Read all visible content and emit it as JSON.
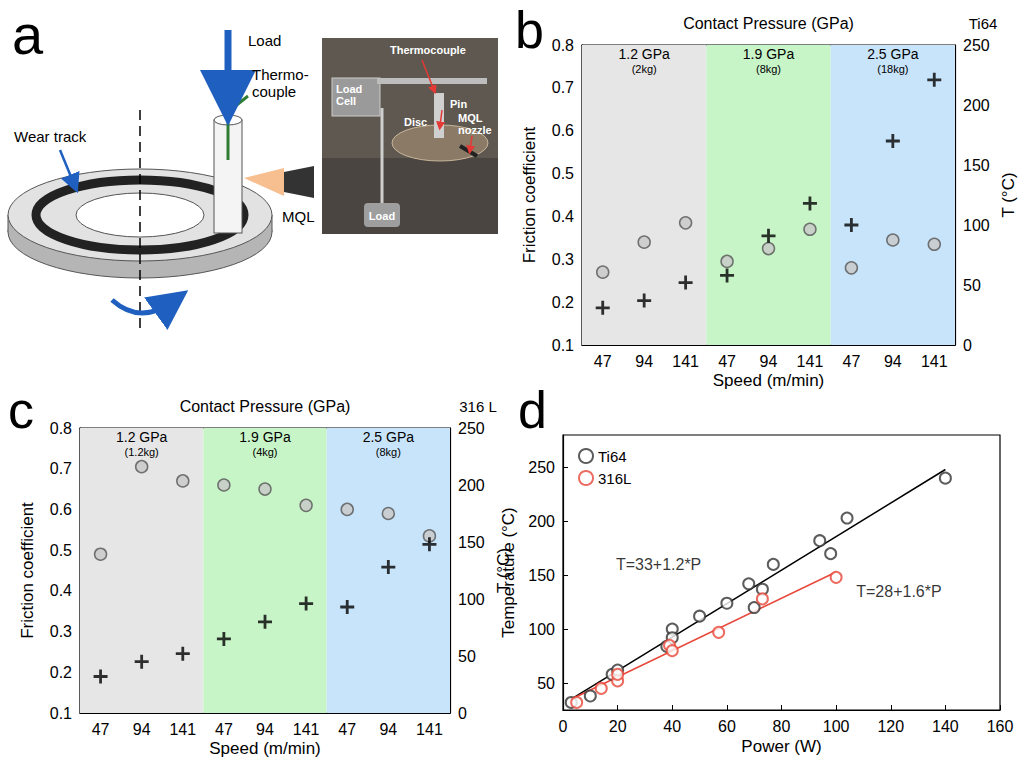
{
  "diagram": {
    "panel_label": "a",
    "schematic_labels": {
      "wear_track": "Wear track",
      "load": "Load",
      "thermocouple": "Thermo-couple",
      "mql": "MQL"
    },
    "photo_labels": {
      "thermocouple": "Thermocouple",
      "load_cell": "Load Cell",
      "pin": "Pin",
      "disc": "Disc",
      "mql_nozzle": "MQL nozzle",
      "load": "Load"
    }
  },
  "chart_data": [
    {
      "panel_label": "b",
      "type": "scatter",
      "title": "Contact Pressure (GPa)",
      "material_label": "Ti64",
      "x_label": "Speed (m/min)",
      "y_label": "Friction coefficient",
      "y2_label": "T (°C)",
      "groups": [
        {
          "name": "1.2 GPa",
          "load": "(2kg)",
          "color": "#e6e6e6",
          "categories": [
            47,
            94,
            141
          ]
        },
        {
          "name": "1.9 GPa",
          "load": "(8kg)",
          "color": "#c8f5c8",
          "categories": [
            47,
            94,
            141
          ]
        },
        {
          "name": "2.5 GPa",
          "load": "(18kg)",
          "color": "#c8e4fa",
          "categories": [
            47,
            94,
            141
          ]
        }
      ],
      "categories": [
        47,
        94,
        141,
        47,
        94,
        141,
        47,
        94,
        141
      ],
      "ylim": [
        0.1,
        0.8
      ],
      "yticks": [
        0.1,
        0.2,
        0.3,
        0.4,
        0.5,
        0.6,
        0.7,
        0.8
      ],
      "y2lim": [
        0,
        250
      ],
      "y2ticks": [
        0,
        50,
        100,
        150,
        200,
        250
      ],
      "series": [
        {
          "marker": "circle",
          "color": "#555555",
          "values": [
            0.27,
            0.34,
            0.385,
            0.295,
            0.325,
            0.37,
            0.28,
            0.345,
            0.335
          ]
        },
        {
          "marker": "cross",
          "color": "#000000",
          "axis": "y2",
          "values": [
            31,
            37,
            52,
            58,
            91,
            118,
            100,
            170,
            221
          ]
        }
      ]
    },
    {
      "panel_label": "c",
      "type": "scatter",
      "title": "Contact Pressure (GPa)",
      "material_label": "316 L",
      "x_label": "Speed (m/min)",
      "y_label": "Friction coefficient",
      "y2_label": "T (°C)",
      "groups": [
        {
          "name": "1.2 GPa",
          "load": "(1.2kg)",
          "color": "#e6e6e6",
          "categories": [
            47,
            94,
            141
          ]
        },
        {
          "name": "1.9 GPa",
          "load": "(4kg)",
          "color": "#c8f5c8",
          "categories": [
            47,
            94,
            141
          ]
        },
        {
          "name": "2.5 GPa",
          "load": "(8kg)",
          "color": "#c8e4fa",
          "categories": [
            47,
            94,
            141
          ]
        }
      ],
      "categories": [
        47,
        94,
        141,
        47,
        94,
        141,
        47,
        94,
        141
      ],
      "ylim": [
        0.1,
        0.8
      ],
      "yticks": [
        0.1,
        0.2,
        0.3,
        0.4,
        0.5,
        0.6,
        0.7,
        0.8
      ],
      "y2lim": [
        0,
        250
      ],
      "y2ticks": [
        0,
        50,
        100,
        150,
        200,
        250
      ],
      "series": [
        {
          "marker": "circle",
          "color": "#555555",
          "values": [
            0.49,
            0.705,
            0.67,
            0.66,
            0.65,
            0.61,
            0.6,
            0.59,
            0.535
          ]
        },
        {
          "marker": "cross",
          "color": "#000000",
          "axis": "y2",
          "values": [
            32,
            45,
            52,
            65,
            80,
            96,
            93,
            128,
            148
          ]
        }
      ]
    },
    {
      "panel_label": "d",
      "type": "scatter",
      "x_label": "Power (W)",
      "y_label": "Temperature (°C)",
      "xlim": [
        0,
        160
      ],
      "xticks": [
        0,
        20,
        40,
        60,
        80,
        100,
        120,
        140,
        160
      ],
      "ylim": [
        25,
        280
      ],
      "yticks": [
        50,
        100,
        150,
        200,
        250
      ],
      "legend": "top-left",
      "series": [
        {
          "name": "Ti64",
          "type": "scatter",
          "marker": "open_circle",
          "color": "#333333",
          "x": [
            3,
            10,
            18,
            20,
            38,
            40,
            40,
            50,
            60,
            68,
            70,
            73,
            77,
            94,
            98,
            104,
            140
          ],
          "values": [
            32,
            38,
            58,
            62,
            84,
            100,
            92,
            112,
            124,
            142,
            120,
            137,
            160,
            182,
            170,
            203,
            240
          ]
        },
        {
          "name": "316L",
          "type": "scatter",
          "marker": "open_circle",
          "color": "#e8473a",
          "x": [
            5,
            14,
            20,
            20,
            39,
            40,
            57,
            73,
            100
          ],
          "values": [
            32,
            45,
            52,
            58,
            85,
            80,
            97,
            128,
            148
          ]
        },
        {
          "type": "line",
          "color": "#000000",
          "x": [
            3,
            140
          ],
          "values": [
            35,
            248
          ]
        },
        {
          "type": "line",
          "color": "#e8473a",
          "x": [
            3,
            100
          ],
          "values": [
            35,
            153
          ]
        }
      ],
      "annotations": [
        {
          "text": "T=33+1.2*P",
          "x": 35,
          "y": 160
        },
        {
          "text": "T=28+1.6*P",
          "x": 123,
          "y": 135
        }
      ]
    }
  ]
}
